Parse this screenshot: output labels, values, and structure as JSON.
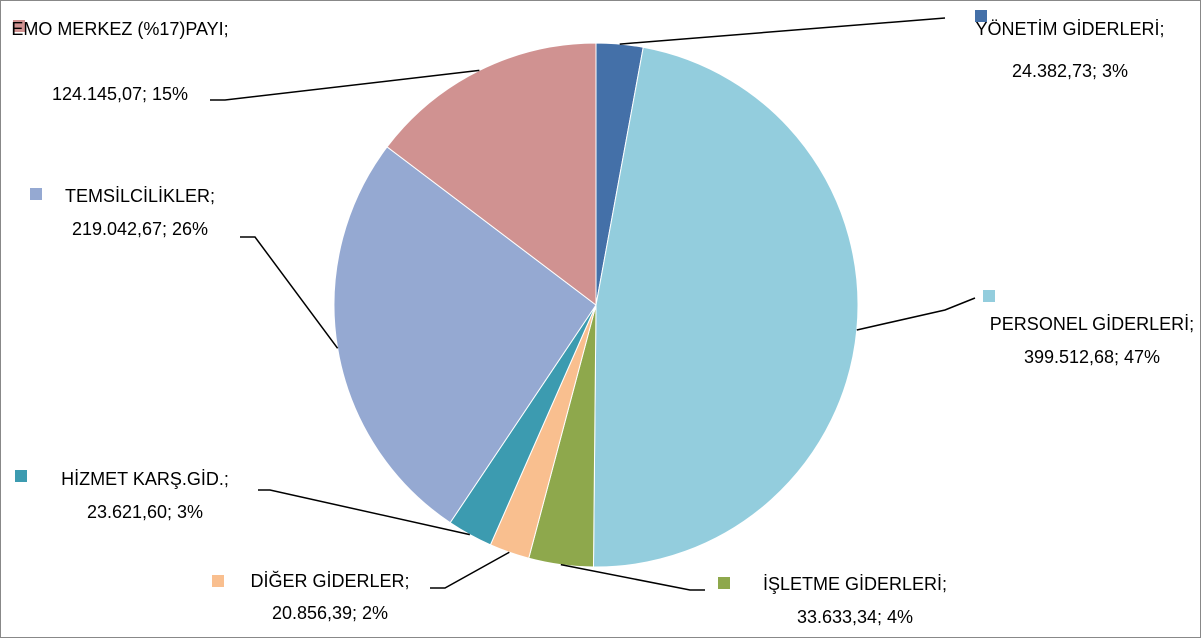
{
  "chart_data": {
    "type": "pie",
    "categories": [
      "YÖNETİM GİDERLERİ;",
      "PERSONEL GİDERLERİ;",
      "İŞLETME GİDERLERİ;",
      "DİĞER GİDERLER;",
      "HİZMET KARŞ.GİD.;",
      "TEMSİLCİLİKLER;",
      "EMO MERKEZ (%17)PAYI;"
    ],
    "values": [
      24382.73,
      399512.68,
      33633.34,
      20856.39,
      23621.6,
      219042.67,
      124145.07
    ],
    "value_labels": [
      "24.382,73; 3%",
      "399.512,68; 47%",
      "33.633,34; 4%",
      "20.856,39; 2%",
      "23.621,60; 3%",
      "219.042,67; 26%",
      "124.145,07; 15%"
    ],
    "colors": [
      "#4470a8",
      "#93cddd",
      "#8ea84c",
      "#f9bf8f",
      "#3c9bb0",
      "#95a9d2",
      "#d09291"
    ]
  }
}
